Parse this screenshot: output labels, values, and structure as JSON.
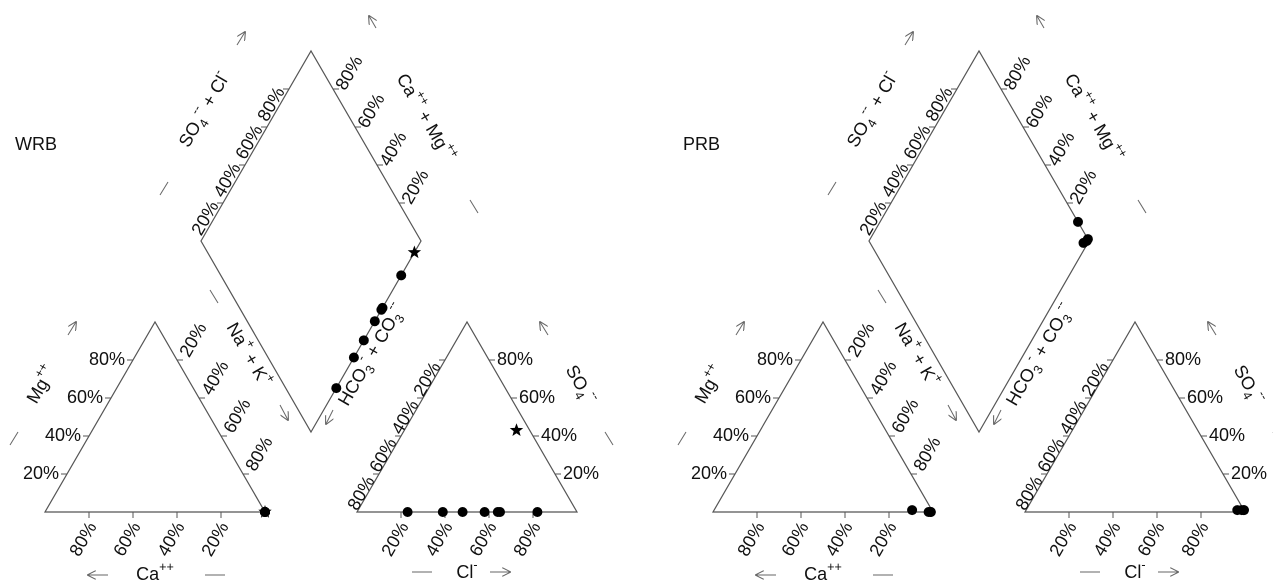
{
  "chart_data": [
    {
      "type": "piper",
      "label": "WRB",
      "color": "#000000",
      "axis_labels": {
        "ca": "Ca++",
        "mg": "Mg++",
        "na_k": "Na+ + K+",
        "so4_cl": "SO4-- + Cl-",
        "ca_mg": "Ca++ + Mg++",
        "hco3_co3": "HCO3- + CO3--",
        "so4": "SO4--",
        "cl": "Cl-"
      },
      "ticks": [
        {
          "value": 20,
          "label": "20%"
        },
        {
          "value": 40,
          "label": "40%"
        },
        {
          "value": 60,
          "label": "60%"
        },
        {
          "value": 80,
          "label": "80%"
        }
      ],
      "samples": [
        {
          "ca": 0,
          "mg": 0,
          "cl": 23,
          "so4": 0,
          "marker": "circle"
        },
        {
          "ca": 0,
          "mg": 0,
          "cl": 39,
          "so4": 0,
          "marker": "circle"
        },
        {
          "ca": 0,
          "mg": 0,
          "cl": 48,
          "so4": 0,
          "marker": "circle"
        },
        {
          "ca": 0,
          "mg": 0,
          "cl": 58,
          "so4": 0,
          "marker": "circle"
        },
        {
          "ca": 0,
          "mg": 0,
          "cl": 64,
          "so4": 0,
          "marker": "circle"
        },
        {
          "ca": 0,
          "mg": 0,
          "cl": 65,
          "so4": 0,
          "marker": "circle"
        },
        {
          "ca": 0,
          "mg": 0,
          "cl": 82,
          "so4": 0,
          "marker": "circle"
        },
        {
          "ca": 0,
          "mg": 0,
          "cl": 51,
          "so4": 43,
          "marker": "star"
        }
      ]
    },
    {
      "type": "piper",
      "label": "PRB",
      "color": "#000000",
      "axis_labels": {
        "ca": "Ca++",
        "mg": "Mg++",
        "na_k": "Na+ + K+",
        "so4_cl": "SO4-- + Cl-",
        "ca_mg": "Ca++ + Mg++",
        "hco3_co3": "HCO3- + CO3--",
        "so4": "SO4--",
        "cl": "Cl-"
      },
      "ticks": [
        {
          "value": 20,
          "label": "20%"
        },
        {
          "value": 40,
          "label": "40%"
        },
        {
          "value": 60,
          "label": "60%"
        },
        {
          "value": 80,
          "label": "80%"
        }
      ],
      "samples": [
        {
          "ca": 9,
          "mg": 1,
          "cl": 99,
          "so4": 1,
          "marker": "circle"
        },
        {
          "ca": 1,
          "mg": 0,
          "cl": 99,
          "so4": 1,
          "marker": "circle"
        },
        {
          "ca": 2,
          "mg": 0,
          "cl": 96,
          "so4": 1,
          "marker": "circle"
        },
        {
          "ca": 1,
          "mg": 0,
          "cl": 98,
          "so4": 1,
          "marker": "circle"
        }
      ]
    }
  ]
}
